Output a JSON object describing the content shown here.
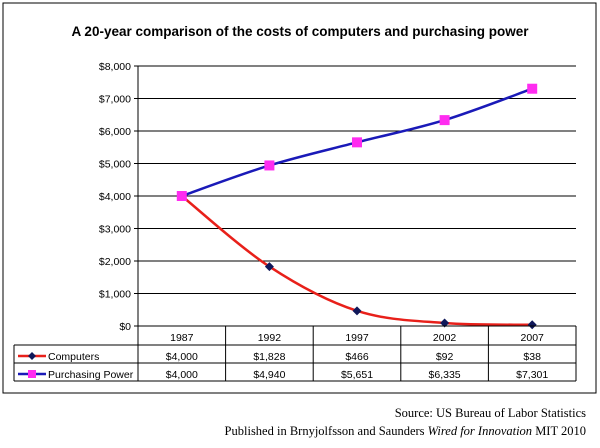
{
  "chart_data": {
    "type": "line",
    "title": "A 20-year comparison of the costs of computers and purchasing power",
    "xlabel": "",
    "ylabel": "",
    "categories": [
      "1987",
      "1992",
      "1997",
      "2002",
      "2007"
    ],
    "ylim": [
      0,
      8000
    ],
    "yticks": [
      0,
      1000,
      2000,
      3000,
      4000,
      5000,
      6000,
      7000,
      8000
    ],
    "ytick_labels": [
      "$0",
      "$1,000",
      "$2,000",
      "$3,000",
      "$4,000",
      "$5,000",
      "$6,000",
      "$7,000",
      "$8,000"
    ],
    "grid": true,
    "legend": "data-table",
    "series": [
      {
        "name": "Computers",
        "values": [
          4000,
          1828,
          466,
          92,
          38
        ],
        "labels": [
          "$4,000",
          "$1,828",
          "$466",
          "$92",
          "$38"
        ],
        "line_color": "#e8201a",
        "marker_color": "#10185a",
        "marker": "diamond"
      },
      {
        "name": "Purchasing Power",
        "values": [
          4000,
          4940,
          5651,
          6335,
          7301
        ],
        "labels": [
          "$4,000",
          "$4,940",
          "$5,651",
          "$6,335",
          "$7,301"
        ],
        "line_color": "#1a1ab8",
        "marker_color": "#ff2cf0",
        "marker": "square"
      }
    ]
  },
  "source": {
    "line1": "Source:  US Bureau of Labor Statistics",
    "line2_prefix": "Published in Brnyjolfsson and Saunders ",
    "line2_italic": "Wired for Innovation",
    "line2_suffix": " MIT 2010"
  }
}
